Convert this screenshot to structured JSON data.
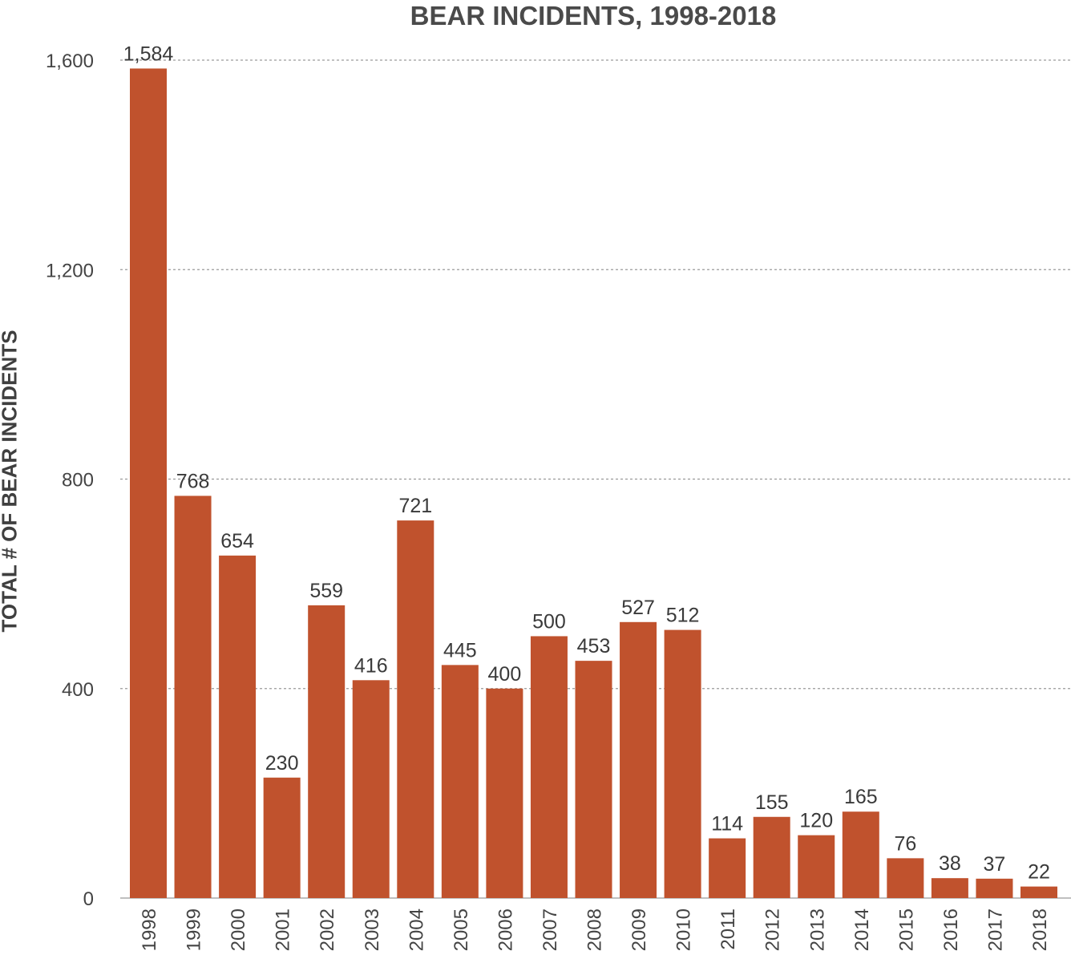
{
  "chart_data": {
    "type": "bar",
    "title": "BEAR INCIDENTS, 1998-2018",
    "xlabel": "",
    "ylabel": "TOTAL # OF BEAR INCIDENTS",
    "categories": [
      "1998",
      "1999",
      "2000",
      "2001",
      "2002",
      "2003",
      "2004",
      "2005",
      "2006",
      "2007",
      "2008",
      "2009",
      "2010",
      "2011",
      "2012",
      "2013",
      "2014",
      "2015",
      "2016",
      "2017",
      "2018"
    ],
    "values": [
      1584,
      768,
      654,
      230,
      559,
      416,
      721,
      445,
      400,
      500,
      453,
      527,
      512,
      114,
      155,
      120,
      165,
      76,
      38,
      37,
      22
    ],
    "value_labels": [
      "1,584",
      "768",
      "654",
      "230",
      "559",
      "416",
      "721",
      "445",
      "400",
      "500",
      "453",
      "527",
      "512",
      "114",
      "155",
      "120",
      "165",
      "76",
      "38",
      "37",
      "22"
    ],
    "yticks": [
      0,
      400,
      800,
      1200,
      1600
    ],
    "ytick_labels": [
      "0",
      "400",
      "800",
      "1,200",
      "1,600"
    ],
    "ylim": [
      0,
      1600
    ],
    "grid": true,
    "bar_color": "#c0522d"
  }
}
